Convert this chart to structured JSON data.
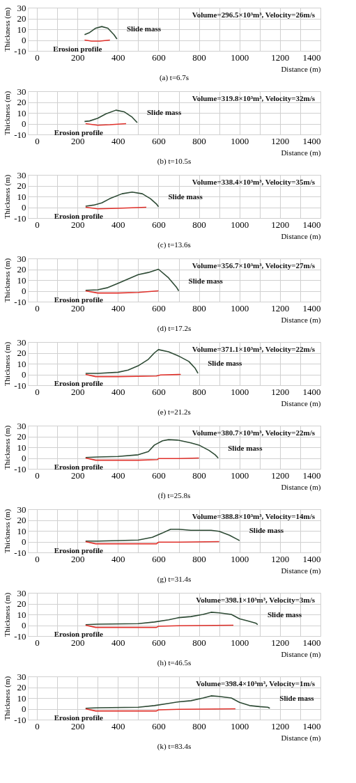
{
  "chart_data": [
    {
      "type": "line",
      "title": "(a) t=6.7s",
      "xlabel": "Distance (m)",
      "ylabel": "Thickness (m)",
      "xlim": [
        -45,
        1400
      ],
      "ylim": [
        -10,
        30
      ],
      "xticks": [
        0,
        {
          "value": 100,
          "label": null
        },
        200,
        {
          "value": 300,
          "label": null
        },
        400,
        {
          "value": 500,
          "label": null
        },
        600,
        {
          "value": 700,
          "label": null
        },
        800,
        {
          "value": 900,
          "label": null
        },
        1000,
        {
          "value": 1100,
          "label": null
        },
        1200,
        {
          "value": 1300,
          "label": null
        },
        1400
      ],
      "yticks": [
        -10,
        0,
        10,
        20,
        30
      ],
      "grid": true,
      "annotations": [
        "Volume=296.5×10³m³, Velocity=26m/s"
      ],
      "series": [
        {
          "name": "Slide mass",
          "color": "#2d4a34",
          "x": [
            235,
            260,
            290,
            320,
            350,
            380,
            395
          ],
          "values": [
            5,
            7,
            11,
            12.5,
            11,
            5,
            1
          ]
        },
        {
          "name": "Erosion profile",
          "color": "#e0302a",
          "x": [
            235,
            270,
            310,
            360
          ],
          "values": [
            0,
            -1,
            -1,
            0
          ]
        }
      ]
    },
    {
      "type": "line",
      "title": "(b) t=10.5s",
      "xlabel": "Distance (m)",
      "ylabel": "Thickness (m)",
      "xlim": [
        -45,
        1400
      ],
      "ylim": [
        -10,
        30
      ],
      "xticks": [
        0,
        {
          "value": 100,
          "label": null
        },
        200,
        {
          "value": 300,
          "label": null
        },
        400,
        {
          "value": 500,
          "label": null
        },
        600,
        {
          "value": 700,
          "label": null
        },
        800,
        {
          "value": 900,
          "label": null
        },
        1000,
        {
          "value": 1100,
          "label": null
        },
        1200,
        {
          "value": 1300,
          "label": null
        },
        1400
      ],
      "yticks": [
        -10,
        0,
        10,
        20,
        30
      ],
      "grid": true,
      "annotations": [
        "Volume=319.8×10³m³, Velocity=32m/s"
      ],
      "series": [
        {
          "name": "Slide mass",
          "color": "#2d4a34",
          "x": [
            235,
            260,
            300,
            340,
            390,
            430,
            470,
            495
          ],
          "values": [
            2,
            2.5,
            5,
            9,
            12.5,
            11,
            6,
            1
          ]
        },
        {
          "name": "Erosion profile",
          "color": "#e0302a",
          "x": [
            240,
            300,
            360,
            440
          ],
          "values": [
            0,
            -1.5,
            -1,
            0
          ]
        }
      ]
    },
    {
      "type": "line",
      "title": "(c) t=13.6s",
      "xlabel": "Distance (m)",
      "ylabel": "Thickness (m)",
      "xlim": [
        -45,
        1400
      ],
      "ylim": [
        -10,
        30
      ],
      "xticks": [
        0,
        {
          "value": 100,
          "label": null
        },
        200,
        {
          "value": 300,
          "label": null
        },
        400,
        {
          "value": 500,
          "label": null
        },
        600,
        {
          "value": 700,
          "label": null
        },
        800,
        {
          "value": 900,
          "label": null
        },
        1000,
        {
          "value": 1100,
          "label": null
        },
        1200,
        {
          "value": 1300,
          "label": null
        },
        1400
      ],
      "yticks": [
        -10,
        0,
        10,
        20,
        30
      ],
      "grid": true,
      "annotations": [
        "Volume=338.4×10³m³, Velocity=35m/s"
      ],
      "series": [
        {
          "name": "Slide mass",
          "color": "#2d4a34",
          "x": [
            240,
            280,
            320,
            360,
            420,
            470,
            520,
            560,
            590,
            600
          ],
          "values": [
            1,
            2,
            4,
            8,
            12.5,
            14,
            12.5,
            8,
            3,
            0.5
          ]
        },
        {
          "name": "Erosion profile",
          "color": "#e0302a",
          "x": [
            240,
            300,
            400,
            540
          ],
          "values": [
            0,
            -1.5,
            -1,
            0
          ]
        }
      ]
    },
    {
      "type": "line",
      "title": "(d) t=17.2s",
      "xlabel": "Distance (m)",
      "ylabel": "Thickness (m)",
      "xlim": [
        -45,
        1400
      ],
      "ylim": [
        -10,
        30
      ],
      "xticks": [
        0,
        {
          "value": 100,
          "label": null
        },
        200,
        {
          "value": 300,
          "label": null
        },
        400,
        {
          "value": 500,
          "label": null
        },
        600,
        {
          "value": 700,
          "label": null
        },
        800,
        {
          "value": 900,
          "label": null
        },
        1000,
        {
          "value": 1100,
          "label": null
        },
        1200,
        {
          "value": 1300,
          "label": null
        },
        1400
      ],
      "yticks": [
        -10,
        0,
        10,
        20,
        30
      ],
      "grid": true,
      "annotations": [
        "Volume=356.7×10³m³, Velocity=27m/s"
      ],
      "series": [
        {
          "name": "Slide mass",
          "color": "#2d4a34",
          "x": [
            240,
            300,
            350,
            400,
            450,
            500,
            550,
            600,
            650,
            690,
            700
          ],
          "values": [
            0.5,
            1,
            3,
            7,
            11,
            15,
            17,
            20,
            12,
            3,
            0
          ]
        },
        {
          "name": "Erosion profile",
          "color": "#e0302a",
          "x": [
            240,
            300,
            400,
            500,
            600
          ],
          "values": [
            0,
            -2,
            -2,
            -1.5,
            0
          ]
        }
      ]
    },
    {
      "type": "line",
      "title": "(e) t=21.2s",
      "xlabel": "Distance (m)",
      "ylabel": "Thickness (m)",
      "xlim": [
        -45,
        1400
      ],
      "ylim": [
        -10,
        30
      ],
      "xticks": [
        0,
        {
          "value": 100,
          "label": null
        },
        200,
        {
          "value": 300,
          "label": null
        },
        400,
        {
          "value": 500,
          "label": null
        },
        600,
        {
          "value": 700,
          "label": null
        },
        800,
        {
          "value": 900,
          "label": null
        },
        1000,
        {
          "value": 1100,
          "label": null
        },
        1200,
        {
          "value": 1300,
          "label": null
        },
        1400
      ],
      "yticks": [
        -10,
        0,
        10,
        20,
        30
      ],
      "grid": true,
      "annotations": [
        "Volume=371.1×10³m³, Velocity=22m/s"
      ],
      "series": [
        {
          "name": "Slide mass",
          "color": "#2d4a34",
          "x": [
            240,
            300,
            400,
            450,
            500,
            550,
            580,
            600,
            650,
            700,
            750,
            780,
            795
          ],
          "values": [
            1,
            1,
            2,
            4,
            8,
            14,
            20,
            23,
            21,
            17,
            12,
            6,
            1
          ]
        },
        {
          "name": "Erosion profile",
          "color": "#e0302a",
          "x": [
            240,
            290,
            400,
            590,
            610,
            710
          ],
          "values": [
            0,
            -2,
            -2,
            -1.5,
            -0.5,
            0
          ]
        }
      ]
    },
    {
      "type": "line",
      "title": "(f) t=25.8s",
      "xlabel": "Distance (m)",
      "ylabel": "Thickness (m)",
      "xlim": [
        -45,
        1400
      ],
      "ylim": [
        -10,
        30
      ],
      "xticks": [
        0,
        {
          "value": 100,
          "label": null
        },
        200,
        {
          "value": 300,
          "label": null
        },
        400,
        {
          "value": 500,
          "label": null
        },
        600,
        {
          "value": 700,
          "label": null
        },
        800,
        {
          "value": 900,
          "label": null
        },
        1000,
        {
          "value": 1100,
          "label": null
        },
        1200,
        {
          "value": 1300,
          "label": null
        },
        1400
      ],
      "yticks": [
        -10,
        0,
        10,
        20,
        30
      ],
      "grid": true,
      "annotations": [
        "Volume=380.7×10³m³, Velocity=22m/s"
      ],
      "series": [
        {
          "name": "Slide mass",
          "color": "#2d4a34",
          "x": [
            240,
            300,
            400,
            500,
            550,
            580,
            620,
            650,
            700,
            760,
            800,
            850,
            880,
            895
          ],
          "values": [
            0.5,
            1,
            1.5,
            3,
            6,
            12,
            16,
            17,
            16.5,
            14,
            12,
            7,
            3,
            0
          ]
        },
        {
          "name": "Erosion profile",
          "color": "#e0302a",
          "x": [
            240,
            290,
            400,
            500,
            595,
            600,
            700,
            800
          ],
          "values": [
            0,
            -2,
            -2,
            -2,
            -1.5,
            -0.5,
            -0.5,
            0
          ]
        }
      ]
    },
    {
      "type": "line",
      "title": "(g) t=31.4s",
      "xlabel": "Distance (m)",
      "ylabel": "Thickness (m)",
      "xlim": [
        -45,
        1400
      ],
      "ylim": [
        -10,
        30
      ],
      "xticks": [
        0,
        {
          "value": 100,
          "label": null
        },
        200,
        {
          "value": 300,
          "label": null
        },
        400,
        {
          "value": 500,
          "label": null
        },
        600,
        {
          "value": 700,
          "label": null
        },
        800,
        {
          "value": 900,
          "label": null
        },
        1000,
        {
          "value": 1100,
          "label": null
        },
        1200,
        {
          "value": 1300,
          "label": null
        },
        1400
      ],
      "yticks": [
        -10,
        0,
        10,
        20,
        30
      ],
      "grid": true,
      "annotations": [
        "Volume=388.8×10³m³, Velocity=14m/s"
      ],
      "series": [
        {
          "name": "Slide mass",
          "color": "#2d4a34",
          "x": [
            240,
            300,
            400,
            500,
            570,
            620,
            660,
            700,
            760,
            860,
            900,
            950,
            990,
            1000
          ],
          "values": [
            0.5,
            0.5,
            1,
            1.5,
            4,
            8,
            11.5,
            11.5,
            10.5,
            10.5,
            9.5,
            6,
            2,
            1
          ]
        },
        {
          "name": "Erosion profile",
          "color": "#e0302a",
          "x": [
            240,
            290,
            400,
            500,
            590,
            600,
            700,
            900
          ],
          "values": [
            0,
            -2,
            -2,
            -2,
            -2,
            -0.5,
            -0.5,
            0
          ]
        }
      ]
    },
    {
      "type": "line",
      "title": "(h) t=46.5s",
      "xlabel": "Distance (m)",
      "ylabel": "Thickness (m)",
      "xlim": [
        -45,
        1400
      ],
      "ylim": [
        -10,
        30
      ],
      "xticks": [
        0,
        {
          "value": 100,
          "label": null
        },
        200,
        {
          "value": 300,
          "label": null
        },
        400,
        {
          "value": 500,
          "label": null
        },
        600,
        {
          "value": 700,
          "label": null
        },
        800,
        {
          "value": 900,
          "label": null
        },
        1000,
        {
          "value": 1100,
          "label": null
        },
        1200,
        {
          "value": 1300,
          "label": null
        },
        1400
      ],
      "yticks": [
        -10,
        0,
        10,
        20,
        30
      ],
      "grid": true,
      "annotations": [
        "Volume=398.1×10³m³, Velocity=3m/s"
      ],
      "series": [
        {
          "name": "Slide mass",
          "color": "#2d4a34",
          "x": [
            240,
            300,
            500,
            580,
            650,
            700,
            760,
            820,
            860,
            900,
            960,
            1000,
            1040,
            1080,
            1090
          ],
          "values": [
            0.5,
            1,
            1.5,
            3,
            5,
            7,
            8,
            10,
            12,
            11.5,
            10,
            6,
            4,
            2,
            0.5
          ]
        },
        {
          "name": "Erosion profile",
          "color": "#e0302a",
          "x": [
            240,
            290,
            400,
            590,
            600,
            700,
            970
          ],
          "values": [
            0,
            -2,
            -2,
            -2,
            -1,
            -0.5,
            0
          ]
        }
      ]
    },
    {
      "type": "line",
      "title": "(k) t=83.4s",
      "xlabel": "Distance (m)",
      "ylabel": "Thickness (m)",
      "xlim": [
        -45,
        1400
      ],
      "ylim": [
        -10,
        30
      ],
      "xticks": [
        0,
        {
          "value": 100,
          "label": null
        },
        200,
        {
          "value": 300,
          "label": null
        },
        400,
        {
          "value": 500,
          "label": null
        },
        600,
        {
          "value": 700,
          "label": null
        },
        800,
        {
          "value": 900,
          "label": null
        },
        1000,
        {
          "value": 1100,
          "label": null
        },
        1200,
        {
          "value": 1300,
          "label": null
        },
        1400
      ],
      "yticks": [
        -10,
        0,
        10,
        20,
        30
      ],
      "grid": true,
      "annotations": [
        "Volume=398.4×10³m³, Velocity=1m/s"
      ],
      "series": [
        {
          "name": "Slide mass",
          "color": "#2d4a34",
          "x": [
            240,
            300,
            500,
            580,
            650,
            700,
            760,
            820,
            860,
            900,
            960,
            1000,
            1050,
            1100,
            1140,
            1150
          ],
          "values": [
            0.5,
            1,
            1.5,
            3,
            5,
            6.5,
            7.5,
            10,
            12,
            11.5,
            10,
            6,
            3,
            2,
            1.5,
            0.5
          ]
        },
        {
          "name": "Erosion profile",
          "color": "#e0302a",
          "x": [
            240,
            290,
            400,
            590,
            600,
            700,
            980
          ],
          "values": [
            0,
            -2,
            -2,
            -2,
            -1,
            -0.5,
            0
          ]
        }
      ]
    }
  ]
}
